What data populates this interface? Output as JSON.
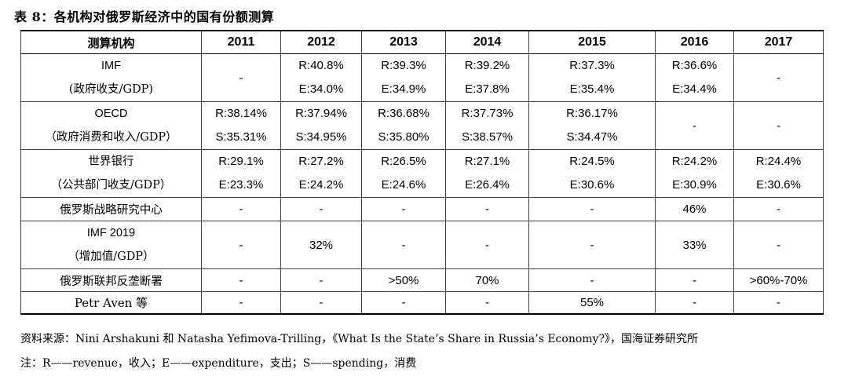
{
  "title": "表 8：各机构对俄罗斯经济中的国有份额测算",
  "table": {
    "headers": [
      "测算机构",
      "2011",
      "2012",
      "2013",
      "2014",
      "2015",
      "2016",
      "2017"
    ],
    "rows": {
      "imf": {
        "org": "IMF",
        "org_sub": "(政府收支/GDP)",
        "y2011": "-",
        "y2012": [
          "R:40.8%",
          "E:34.0%"
        ],
        "y2013": [
          "R:39.3%",
          "E:34.9%"
        ],
        "y2014": [
          "R:39.2%",
          "E:37.8%"
        ],
        "y2015": [
          "R:37.3%",
          "E:35.4%"
        ],
        "y2016": [
          "R:36.6%",
          "E:34.4%"
        ],
        "y2017": "-"
      },
      "oecd": {
        "org": "OECD",
        "org_sub": "（政府消费和收入/GDP）",
        "y2011": [
          "R:38.14%",
          "S:35.31%"
        ],
        "y2012": [
          "R:37.94%",
          "S:34.95%"
        ],
        "y2013": [
          "R:36.68%",
          "S:35.80%"
        ],
        "y2014": [
          "R:37.73%",
          "S:38.57%"
        ],
        "y2015": [
          "R:36.17%",
          "S:34.47%"
        ],
        "y2016": "-",
        "y2017": "-"
      },
      "worldbank": {
        "org": "世界银行",
        "org_sub": "（公共部门收支/GDP）",
        "y2011": [
          "R:29.1%",
          "E:23.3%"
        ],
        "y2012": [
          "R:27.2%",
          "E:24.2%"
        ],
        "y2013": [
          "R:26.5%",
          "E:24.6%"
        ],
        "y2014": [
          "R:27.1%",
          "E:26.4%"
        ],
        "y2015": [
          "R:24.5%",
          "E:30.6%"
        ],
        "y2016": [
          "R:24.2%",
          "E:30.9%"
        ],
        "y2017": [
          "R:24.4%",
          "E:30.6%"
        ]
      },
      "csr": {
        "org": "俄罗斯战略研究中心",
        "values": [
          "-",
          "-",
          "-",
          "-",
          "-",
          "46%",
          "-"
        ]
      },
      "imf2019": {
        "org": "IMF 2019",
        "org_sub": "（增加值/GDP）",
        "values": [
          "-",
          "32%",
          "-",
          "-",
          "-",
          "33%",
          "-"
        ]
      },
      "fas": {
        "org": "俄罗斯联邦反垄断署",
        "values": [
          "-",
          "-",
          ">50%",
          "70%",
          "-",
          "-",
          ">60%-70%"
        ]
      },
      "aven": {
        "org": "Petr Aven 等",
        "values": [
          "-",
          "-",
          "-",
          "-",
          "55%",
          "-",
          "-"
        ]
      }
    }
  },
  "source": "资料来源：Nini Arshakuni 和 Natasha Yefimova-Trilling，《What Is the State’s Share in Russia’s Economy?》，国海证券研究所",
  "note": "注：R——revenue，收入；E——expenditure，支出；S——spending，消费"
}
